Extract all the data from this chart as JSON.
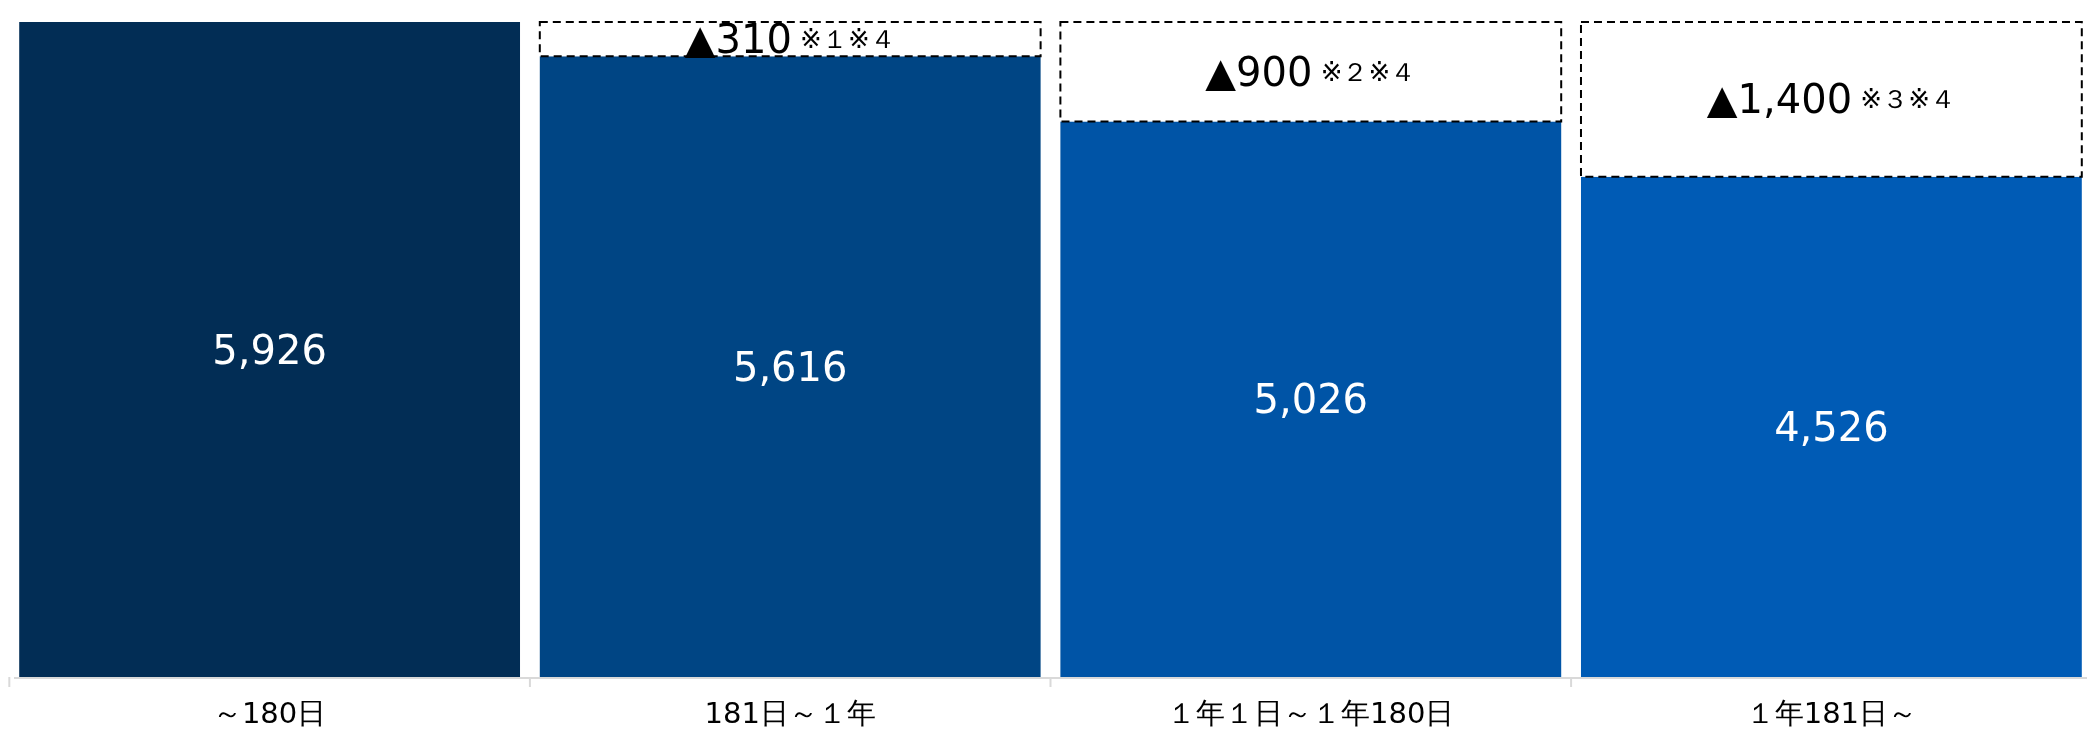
{
  "chart_data": {
    "type": "bar",
    "stacked": true,
    "categories": [
      "～180日",
      "181日～１年",
      "１年１日～１年180日",
      "１年181日～"
    ],
    "series": [
      {
        "colors": [
          "#022d55",
          "#004584",
          "#0054a6",
          "#005bb5"
        ],
        "values": [
          5926,
          5616,
          5026,
          4526
        ],
        "value_labels": [
          "5,926",
          "5,616",
          "5,026",
          "4,526"
        ]
      },
      {
        "color": "#ffffff",
        "line_style": "dashed",
        "values": [
          0,
          310,
          900,
          1400
        ],
        "value_labels": [
          null,
          "▲310 ※１※４",
          "▲900 ※２※４",
          "▲1,400 ※３※４"
        ]
      }
    ]
  }
}
